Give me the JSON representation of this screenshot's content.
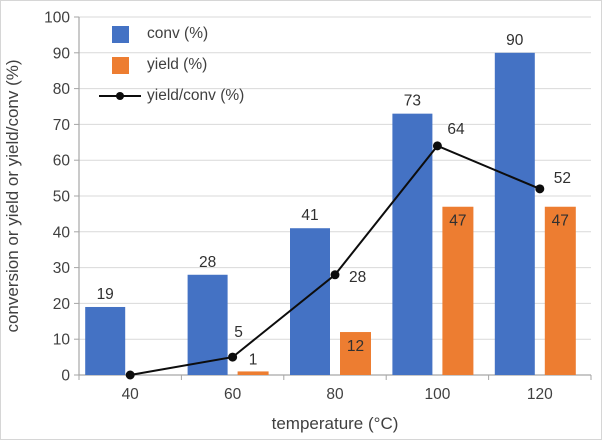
{
  "chart_data": {
    "type": "combo-bar-line",
    "categories": [
      "40",
      "60",
      "80",
      "100",
      "120"
    ],
    "series": [
      {
        "name": "conv (%)",
        "type": "bar",
        "color": "#4472C4",
        "values": [
          19,
          28,
          41,
          73,
          90
        ],
        "labels": [
          "19",
          "28",
          "41",
          "73",
          "90"
        ]
      },
      {
        "name": "yield (%)",
        "type": "bar",
        "color": "#ED7D31",
        "values": [
          0,
          1,
          12,
          47,
          47
        ],
        "labels": [
          "",
          "1",
          "12",
          "47",
          "47"
        ]
      },
      {
        "name": "yield/conv (%)",
        "type": "line",
        "color": "#0d0d0d",
        "marker": "circle",
        "values": [
          0,
          5,
          28,
          64,
          52
        ],
        "labels": [
          "",
          "5",
          "28",
          "64",
          "52"
        ]
      }
    ],
    "xlabel": "temperature (°C)",
    "ylabel": "conversion or yield or yield/conv (%)",
    "ylim": [
      0,
      100
    ],
    "ytick_step": 10,
    "grid": true,
    "legend_position": "upper-left-inside",
    "colors": {
      "grid": "#d9d9d9",
      "axis_line": "#a6a6a6",
      "axis_text": "#404040",
      "label": "#303030"
    }
  }
}
